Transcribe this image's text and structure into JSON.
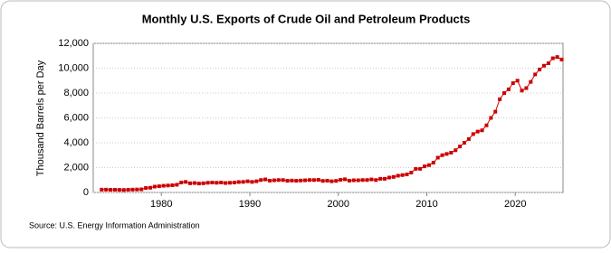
{
  "chart_data": {
    "type": "line",
    "title": "Monthly U.S. Exports of Crude Oil and Petroleum Products",
    "ylabel": "Thousand Barrels per Day",
    "source": "Source: U.S. Energy Information Administration",
    "xlim": [
      1972.3,
      2025.4
    ],
    "xticks": [
      1980,
      1990,
      2000,
      2010,
      2020
    ],
    "ylim": [
      0,
      12000
    ],
    "yticks": [
      {
        "value": 0,
        "label": "0"
      },
      {
        "value": 2000,
        "label": "2,000"
      },
      {
        "value": 4000,
        "label": "4,000"
      },
      {
        "value": 6000,
        "label": "6,000"
      },
      {
        "value": 8000,
        "label": "8,000"
      },
      {
        "value": 10000,
        "label": "10,000"
      },
      {
        "value": 12000,
        "label": "12,000"
      }
    ],
    "grid": true,
    "color": "#cc0000",
    "x": [
      1973.25,
      1973.75,
      1974.25,
      1974.75,
      1975.25,
      1975.75,
      1976.25,
      1976.75,
      1977.25,
      1977.75,
      1978.25,
      1978.75,
      1979.25,
      1979.75,
      1980.25,
      1980.75,
      1981.25,
      1981.75,
      1982.25,
      1982.75,
      1983.25,
      1983.75,
      1984.25,
      1984.75,
      1985.25,
      1985.75,
      1986.25,
      1986.75,
      1987.25,
      1987.75,
      1988.25,
      1988.75,
      1989.25,
      1989.75,
      1990.25,
      1990.75,
      1991.25,
      1991.75,
      1992.25,
      1992.75,
      1993.25,
      1993.75,
      1994.25,
      1994.75,
      1995.25,
      1995.75,
      1996.25,
      1996.75,
      1997.25,
      1997.75,
      1998.25,
      1998.75,
      1999.25,
      1999.75,
      2000.25,
      2000.75,
      2001.25,
      2001.75,
      2002.25,
      2002.75,
      2003.25,
      2003.75,
      2004.25,
      2004.75,
      2005.25,
      2005.75,
      2006.25,
      2006.75,
      2007.25,
      2007.75,
      2008.25,
      2008.75,
      2009.25,
      2009.75,
      2010.25,
      2010.75,
      2011.25,
      2011.75,
      2012.25,
      2012.75,
      2013.25,
      2013.75,
      2014.25,
      2014.75,
      2015.25,
      2015.75,
      2016.25,
      2016.75,
      2017.25,
      2017.75,
      2018.25,
      2018.75,
      2019.25,
      2019.75,
      2020.25,
      2020.75,
      2021.25,
      2021.75,
      2022.25,
      2022.75,
      2023.25,
      2023.75,
      2024.25,
      2024.75,
      2025.25
    ],
    "values": [
      230,
      230,
      220,
      220,
      210,
      200,
      220,
      230,
      240,
      250,
      360,
      380,
      470,
      500,
      540,
      560,
      580,
      620,
      800,
      850,
      740,
      760,
      720,
      740,
      780,
      800,
      780,
      800,
      760,
      780,
      800,
      840,
      850,
      900,
      850,
      900,
      1000,
      1050,
      950,
      980,
      1000,
      1000,
      940,
      960,
      940,
      960,
      980,
      1000,
      1000,
      1020,
      930,
      950,
      900,
      930,
      1020,
      1060,
      950,
      980,
      980,
      1000,
      1000,
      1050,
      1000,
      1100,
      1100,
      1200,
      1250,
      1350,
      1400,
      1450,
      1600,
      1900,
      1900,
      2100,
      2200,
      2400,
      2800,
      3000,
      3100,
      3200,
      3400,
      3700,
      4000,
      4300,
      4700,
      4900,
      5000,
      5400,
      6000,
      6500,
      7500,
      8000,
      8300,
      8800,
      9000,
      8200,
      8400,
      8900,
      9500,
      9900,
      10200,
      10400,
      10800,
      10900,
      10700
    ]
  }
}
